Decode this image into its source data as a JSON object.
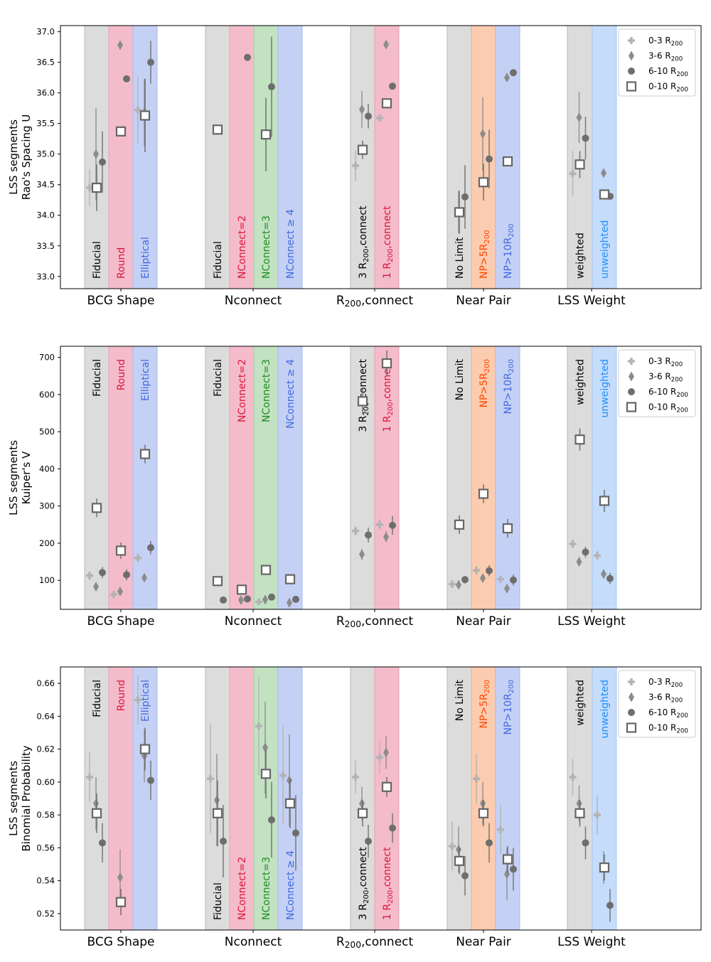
{
  "chart_data": {
    "type": "scatter",
    "groups": [
      "BCG Shape",
      "Nconnect",
      "R200,connect",
      "Near Pair",
      "LSS Weight"
    ],
    "group_labels_display": [
      {
        "text": "BCG Shape"
      },
      {
        "text": "Nconnect"
      },
      {
        "text": "R",
        "sub": "200",
        "tail": ",connect"
      },
      {
        "text": "Near Pair"
      },
      {
        "text": "LSS Weight"
      }
    ],
    "legend": [
      {
        "label": "0-3 R",
        "sub": "200",
        "marker": "plus"
      },
      {
        "label": "3-6 R",
        "sub": "200",
        "marker": "diamond"
      },
      {
        "label": "6-10 R",
        "sub": "200",
        "marker": "circle"
      },
      {
        "label": "0-10 R",
        "sub": "200",
        "marker": "square"
      }
    ],
    "colors": {
      "plus": "#b3b3b3",
      "diamond": "#8c8c8c",
      "circle": "#6e6e6e",
      "square_edge": "#666666",
      "gray_band": "#dcdcdc",
      "red_band": "#f4bccb",
      "blue_band": "#c5d1f4",
      "green_band": "#c2e2c2",
      "orange_band": "#fbccb0",
      "lightblue_band": "#c5dcfa",
      "red_text": "#dc143c",
      "blue_text": "#4169e1",
      "green_text": "#228b22",
      "orange_text": "#ff4500",
      "sky_text": "#1e90ff",
      "black_text": "#000000"
    },
    "columns": [
      {
        "key": "bcg_fid",
        "group": 0,
        "label": "Fiducial",
        "band": "gray",
        "text_color": "black"
      },
      {
        "key": "bcg_round",
        "group": 0,
        "label": "Round",
        "band": "red",
        "text_color": "red"
      },
      {
        "key": "bcg_ell",
        "group": 0,
        "label": "Elliptical",
        "band": "blue",
        "text_color": "blue"
      },
      {
        "key": "nc_fid",
        "group": 1,
        "label": "Fiducial",
        "band": "gray",
        "text_color": "black"
      },
      {
        "key": "nc2",
        "group": 1,
        "label": "NConnect=2",
        "band": "red",
        "text_color": "red"
      },
      {
        "key": "nc3",
        "group": 1,
        "label": "NConnect=3",
        "band": "green",
        "text_color": "green"
      },
      {
        "key": "nc4",
        "group": 1,
        "label": "NConnect ≥ 4",
        "band": "blue",
        "text_color": "blue"
      },
      {
        "key": "r3",
        "group": 2,
        "label": "3 R",
        "sub": "200",
        "tail": ",connect",
        "band": "gray",
        "text_color": "black"
      },
      {
        "key": "r1",
        "group": 2,
        "label": "1 R",
        "sub": "200",
        "tail": ",connect",
        "band": "red",
        "text_color": "red"
      },
      {
        "key": "np_none",
        "group": 3,
        "label": "No Limit",
        "band": "gray",
        "text_color": "black"
      },
      {
        "key": "np5",
        "group": 3,
        "label": "NP>5R",
        "sub": "200",
        "tail": "",
        "band": "orange",
        "text_color": "orange"
      },
      {
        "key": "np10",
        "group": 3,
        "label": "NP>10R",
        "sub": "200",
        "tail": "",
        "band": "blue",
        "text_color": "blue"
      },
      {
        "key": "w",
        "group": 4,
        "label": "weighted",
        "band": "gray",
        "text_color": "black"
      },
      {
        "key": "uw",
        "group": 4,
        "label": "unweighted",
        "band": "lightblue",
        "text_color": "sky"
      }
    ],
    "panels": [
      {
        "ylabel_line1": "LSS segments",
        "ylabel_line2": "Rao's Spacing U",
        "ylim": [
          32.8,
          37.1
        ],
        "yticks": [
          33.0,
          33.5,
          34.0,
          34.5,
          35.0,
          35.5,
          36.0,
          36.5,
          37.0
        ],
        "ytick_labels": [
          "33.0",
          "33.5",
          "34.0",
          "34.5",
          "35.0",
          "35.5",
          "36.0",
          "36.5",
          "37.0"
        ],
        "column_label_position": "bottom",
        "points": {
          "bcg_fid": {
            "plus": [
              34.45,
              0.3
            ],
            "diamond": [
              35.0,
              0.75
            ],
            "circle": [
              34.87,
              0.5
            ],
            "square": [
              34.45,
              0.38
            ]
          },
          "bcg_round": {
            "plus": null,
            "diamond": [
              36.78,
              0.0
            ],
            "circle": [
              36.23,
              0.0
            ],
            "square": [
              35.37,
              0.0
            ]
          },
          "bcg_ell": {
            "plus": [
              35.72,
              0.55
            ],
            "diamond": [
              35.68,
              0.55
            ],
            "circle": [
              36.5,
              0.35
            ],
            "square": [
              35.63,
              0.6
            ]
          },
          "nc_fid": {
            "plus": null,
            "diamond": null,
            "circle": null,
            "square": [
              35.4,
              0.0
            ]
          },
          "nc2": {
            "plus": null,
            "diamond": null,
            "circle": [
              36.58,
              0.0
            ],
            "square": null
          },
          "nc3": {
            "plus": null,
            "diamond": null,
            "circle": [
              36.1,
              0.82
            ],
            "square": [
              35.32,
              0.6
            ]
          },
          "nc4": {
            "plus": null,
            "diamond": null,
            "circle": null,
            "square": null
          },
          "r3": {
            "plus": [
              34.81,
              0.25
            ],
            "diamond": [
              35.73,
              0.3
            ],
            "circle": [
              35.62,
              0.2
            ],
            "square": [
              35.07,
              0.15
            ]
          },
          "r1": {
            "plus": [
              35.59,
              0.05
            ],
            "diamond": [
              36.79,
              0.0
            ],
            "circle": [
              36.11,
              0.0
            ],
            "square": [
              35.83,
              0.07
            ]
          },
          "np_none": {
            "plus": null,
            "diamond": [
              34.05,
              0.35
            ],
            "circle": [
              34.3,
              0.52
            ],
            "square": [
              34.05,
              0.35
            ]
          },
          "np5": {
            "plus": null,
            "diamond": [
              35.33,
              0.6
            ],
            "circle": [
              34.92,
              0.48
            ],
            "square": [
              34.54,
              0.3
            ]
          },
          "np10": {
            "plus": null,
            "diamond": [
              36.25,
              0.0
            ],
            "circle": [
              36.33,
              0.0
            ],
            "square": [
              34.88,
              0.0
            ]
          },
          "w": {
            "plus": [
              34.68,
              0.37
            ],
            "diamond": [
              35.6,
              0.42
            ],
            "circle": [
              35.26,
              0.35
            ],
            "square": [
              34.83,
              0.22
            ]
          },
          "uw": {
            "plus": null,
            "diamond": [
              34.69,
              0.0
            ],
            "circle": [
              34.31,
              0.0
            ],
            "square": [
              34.34,
              0.0
            ]
          }
        }
      },
      {
        "ylabel_line1": "LSS segments",
        "ylabel_line2": "Kuiper's V",
        "ylim": [
          22,
          730
        ],
        "yticks": [
          100,
          200,
          300,
          400,
          500,
          600,
          700
        ],
        "ytick_labels": [
          "100",
          "200",
          "300",
          "400",
          "500",
          "600",
          "700"
        ],
        "column_label_position": "top",
        "points": {
          "bcg_fid": {
            "plus": [
              113,
              12
            ],
            "diamond": [
              83,
              10
            ],
            "circle": [
              121,
              15
            ],
            "square": [
              295,
              25
            ]
          },
          "bcg_round": {
            "plus": [
              62,
              10
            ],
            "diamond": [
              70,
              10
            ],
            "circle": [
              115,
              15
            ],
            "square": [
              180,
              22
            ]
          },
          "bcg_ell": {
            "plus": [
              160,
              12
            ],
            "diamond": [
              107,
              8
            ],
            "circle": [
              188,
              18
            ],
            "square": [
              440,
              25
            ]
          },
          "nc_fid": {
            "plus": null,
            "diamond": null,
            "circle": [
              47,
              0
            ],
            "square": [
              98,
              0
            ]
          },
          "nc2": {
            "plus": null,
            "diamond": [
              47,
              8
            ],
            "circle": [
              50,
              5
            ],
            "square": [
              75,
              12
            ]
          },
          "nc3": {
            "plus": [
              42,
              8
            ],
            "diamond": [
              48,
              8
            ],
            "circle": [
              55,
              5
            ],
            "square": [
              128,
              0
            ]
          },
          "nc4": {
            "plus": null,
            "diamond": [
              40,
              8
            ],
            "circle": [
              49,
              5
            ],
            "square": [
              103,
              0
            ]
          },
          "r3": {
            "plus": [
              233,
              12
            ],
            "diamond": [
              170,
              15
            ],
            "circle": [
              222,
              20
            ],
            "square": [
              582,
              35
            ]
          },
          "r1": {
            "plus": [
              250,
              15
            ],
            "diamond": [
              217,
              15
            ],
            "circle": [
              248,
              25
            ],
            "square": [
              684,
              35
            ]
          },
          "np_none": {
            "plus": [
              90,
              10
            ],
            "diamond": [
              88,
              10
            ],
            "circle": [
              102,
              10
            ],
            "square": [
              250,
              25
            ]
          },
          "np5": {
            "plus": [
              127,
              12
            ],
            "diamond": [
              106,
              8
            ],
            "circle": [
              126,
              15
            ],
            "square": [
              333,
              25
            ]
          },
          "np10": {
            "plus": [
              103,
              10
            ],
            "diamond": [
              78,
              10
            ],
            "circle": [
              101,
              15
            ],
            "square": [
              240,
              25
            ]
          },
          "w": {
            "plus": [
              198,
              12
            ],
            "diamond": [
              150,
              12
            ],
            "circle": [
              176,
              15
            ],
            "square": [
              479,
              30
            ]
          },
          "uw": {
            "plus": [
              167,
              12
            ],
            "diamond": [
              117,
              10
            ],
            "circle": [
              105,
              15
            ],
            "square": [
              314,
              30
            ]
          }
        }
      },
      {
        "ylabel_line1": "LSS segments",
        "ylabel_line2": "Binomial Probability",
        "ylim": [
          0.51,
          0.67
        ],
        "yticks": [
          0.52,
          0.54,
          0.56,
          0.58,
          0.6,
          0.62,
          0.64,
          0.66
        ],
        "ytick_labels": [
          "0.52",
          "0.54",
          "0.56",
          "0.58",
          "0.60",
          "0.62",
          "0.64",
          "0.66"
        ],
        "column_label_position": "mixed",
        "label_positions": {
          "bcg_fid": "top",
          "bcg_round": "top",
          "bcg_ell": "top",
          "nc_fid": "bottom",
          "nc2": "bottom",
          "nc3": "bottom",
          "nc4": "bottom",
          "r3": "bottom",
          "r1": "bottom",
          "np_none": "top",
          "np5": "top",
          "np10": "top",
          "w": "top",
          "uw": "top"
        },
        "points": {
          "bcg_fid": {
            "plus": [
              0.603,
              0.015
            ],
            "diamond": [
              0.587,
              0.016
            ],
            "circle": [
              0.563,
              0.012
            ],
            "square": [
              0.581,
              0.012
            ]
          },
          "bcg_round": {
            "plus": null,
            "diamond": [
              0.542,
              0.017
            ],
            "circle": null,
            "square": [
              0.527,
              0.008
            ]
          },
          "bcg_ell": {
            "plus": [
              0.65,
              0.015
            ],
            "diamond": [
              0.616,
              0.016
            ],
            "circle": [
              0.601,
              0.012
            ],
            "square": [
              0.62,
              0.013
            ]
          },
          "nc_fid": {
            "plus": [
              0.602,
              0.033
            ],
            "diamond": [
              0.589,
              0.028
            ],
            "circle": [
              0.564,
              0.022
            ],
            "square": [
              0.581,
              0.02
            ]
          },
          "nc2": {
            "plus": null,
            "diamond": null,
            "circle": null,
            "square": null
          },
          "nc3": {
            "plus": [
              0.634,
              0.03
            ],
            "diamond": [
              0.621,
              0.028
            ],
            "circle": [
              0.577,
              0.023
            ],
            "square": [
              0.605,
              0.015
            ]
          },
          "nc4": {
            "plus": [
              0.604,
              0.03
            ],
            "diamond": [
              0.601,
              0.028
            ],
            "circle": [
              0.569,
              0.023
            ],
            "square": [
              0.587,
              0.015
            ]
          },
          "r3": {
            "plus": [
              0.603,
              0.01
            ],
            "diamond": [
              0.587,
              0.01
            ],
            "circle": [
              0.564,
              0.01
            ],
            "square": [
              0.581,
              0.008
            ]
          },
          "r1": {
            "plus": [
              0.615,
              0.01
            ],
            "diamond": [
              0.618,
              0.01
            ],
            "circle": [
              0.572,
              0.009
            ],
            "square": [
              0.597,
              0.006
            ]
          },
          "np_none": {
            "plus": [
              0.561,
              0.015
            ],
            "diamond": [
              0.559,
              0.014
            ],
            "circle": [
              0.543,
              0.012
            ],
            "square": [
              0.552,
              0.008
            ]
          },
          "np5": {
            "plus": [
              0.602,
              0.015
            ],
            "diamond": [
              0.587,
              0.013
            ],
            "circle": [
              0.563,
              0.012
            ],
            "square": [
              0.581,
              0.008
            ]
          },
          "np10": {
            "plus": [
              0.571,
              0.015
            ],
            "diamond": [
              0.544,
              0.016
            ],
            "circle": [
              0.547,
              0.013
            ],
            "square": [
              0.553,
              0.008
            ]
          },
          "w": {
            "plus": [
              0.603,
              0.011
            ],
            "diamond": [
              0.587,
              0.011
            ],
            "circle": [
              0.563,
              0.01
            ],
            "square": [
              0.581,
              0.008
            ]
          },
          "uw": {
            "plus": [
              0.58,
              0.012
            ],
            "diamond": [
              0.548,
              0.01
            ],
            "circle": [
              0.525,
              0.01
            ],
            "square": [
              0.548,
              0.008
            ]
          }
        }
      }
    ]
  }
}
